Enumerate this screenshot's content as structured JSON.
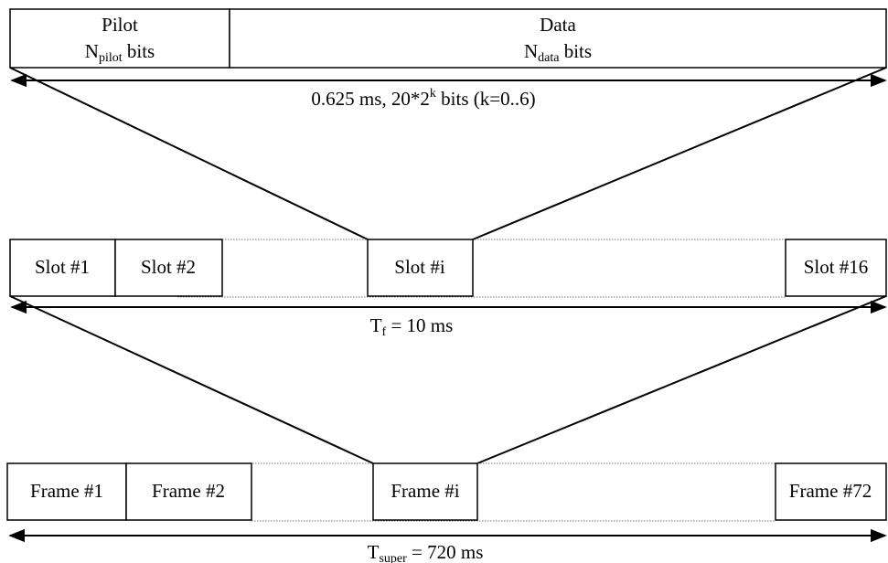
{
  "top": {
    "pilot": {
      "title": "Pilot",
      "main": "N",
      "sub": "pilot",
      "rest": " bits"
    },
    "data": {
      "title": "Data",
      "main": "N",
      "sub": "data",
      "rest": " bits"
    },
    "duration": {
      "pre": "0.625 ms, 20*2",
      "sup": "k",
      "post": " bits (k=0..6)"
    }
  },
  "slots": {
    "items": [
      "Slot #1",
      "Slot #2",
      "Slot #i",
      "Slot #16"
    ],
    "duration": {
      "main": "T",
      "sub": "f",
      "post": " = 10 ms"
    }
  },
  "frames": {
    "items": [
      "Frame #1",
      "Frame #2",
      "Frame #i",
      "Frame #72"
    ],
    "duration": {
      "main": "T",
      "sub": "super",
      "post": " = 720 ms"
    }
  }
}
